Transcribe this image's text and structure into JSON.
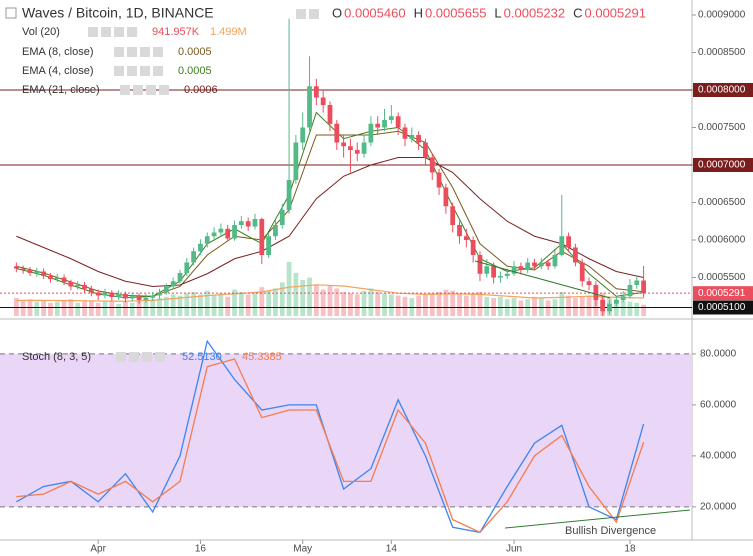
{
  "chart_data": [
    {
      "type": "candlestick",
      "title": "Waves / Bitcoin, 1D, BINANCE",
      "ohlc_legend": [
        {
          "key": "O",
          "value": 0.000546,
          "label": "0.0005460"
        },
        {
          "key": "H",
          "value": 0.0005655,
          "label": "0.0005655"
        },
        {
          "key": "L",
          "value": 0.0005232,
          "label": "0.0005232"
        },
        {
          "key": "C",
          "value": 0.0005291,
          "label": "0.0005291"
        }
      ],
      "up_color": "#53b987",
      "down_color": "#eb4d5c",
      "xlim": [
        -2.4,
        99.1
      ],
      "ylim": [
        0.000496,
        0.00092
      ],
      "yticks": [
        {
          "value": 0.0009,
          "label": "0.0009000"
        },
        {
          "value": 0.00085,
          "label": "0.0008500"
        },
        {
          "value": 0.0008,
          "label": "0.0008000"
        },
        {
          "value": 0.00075,
          "label": "0.0007500"
        },
        {
          "value": 0.0007,
          "label": "0.0007000"
        },
        {
          "value": 0.00065,
          "label": "0.0006500"
        },
        {
          "value": 0.0006,
          "label": "0.0006000"
        },
        {
          "value": 0.00055,
          "label": "0.0005500"
        }
      ],
      "grid": false,
      "candles": [
        [
          0,
          0.000565,
          0.00057,
          0.000557,
          0.000562
        ],
        [
          1,
          0.000562,
          0.000566,
          0.000555,
          0.00056
        ],
        [
          2,
          0.00056,
          0.000564,
          0.000552,
          0.000556
        ],
        [
          3,
          0.000556,
          0.000563,
          0.000551,
          0.000558
        ],
        [
          4,
          0.000558,
          0.000562,
          0.000548,
          0.000552
        ],
        [
          5,
          0.000552,
          0.000556,
          0.000543,
          0.000548
        ],
        [
          6,
          0.000548,
          0.000555,
          0.000544,
          0.00055
        ],
        [
          7,
          0.00055,
          0.000554,
          0.00054,
          0.000544
        ],
        [
          8,
          0.000544,
          0.000547,
          0.000533,
          0.000538
        ],
        [
          9,
          0.000538,
          0.000545,
          0.000534,
          0.00054
        ],
        [
          10,
          0.00054,
          0.000544,
          0.00053,
          0.000535
        ],
        [
          11,
          0.000535,
          0.000539,
          0.000525,
          0.00053
        ],
        [
          12,
          0.00053,
          0.000534,
          0.00052,
          0.000526
        ],
        [
          13,
          0.000526,
          0.000535,
          0.000522,
          0.00053
        ],
        [
          14,
          0.00053,
          0.000533,
          0.000519,
          0.000524
        ],
        [
          15,
          0.000524,
          0.000533,
          0.00052,
          0.000528
        ],
        [
          16,
          0.000528,
          0.000531,
          0.000517,
          0.000522
        ],
        [
          17,
          0.000522,
          0.00053,
          0.000518,
          0.000525
        ],
        [
          18,
          0.000525,
          0.000529,
          0.000515,
          0.00052
        ],
        [
          19,
          0.00052,
          0.000528,
          0.000516,
          0.000523
        ],
        [
          20,
          0.000523,
          0.000531,
          0.000519,
          0.000526
        ],
        [
          21,
          0.000526,
          0.000535,
          0.000522,
          0.00053
        ],
        [
          22,
          0.00053,
          0.000542,
          0.000527,
          0.000538
        ],
        [
          23,
          0.000538,
          0.00055,
          0.000535,
          0.000545
        ],
        [
          24,
          0.000545,
          0.00056,
          0.000542,
          0.000556
        ],
        [
          25,
          0.000556,
          0.000576,
          0.000552,
          0.00057
        ],
        [
          26,
          0.00057,
          0.00059,
          0.000566,
          0.000585
        ],
        [
          27,
          0.000585,
          0.000601,
          0.00058,
          0.000595
        ],
        [
          28,
          0.000595,
          0.00061,
          0.00059,
          0.000605
        ],
        [
          29,
          0.000605,
          0.000617,
          0.0006,
          0.00061
        ],
        [
          30,
          0.00061,
          0.000622,
          0.000605,
          0.000615
        ],
        [
          31,
          0.000615,
          0.00062,
          0.000598,
          0.000602
        ],
        [
          32,
          0.000602,
          0.000626,
          0.000599,
          0.00062
        ],
        [
          33,
          0.00062,
          0.000632,
          0.000615,
          0.000625
        ],
        [
          34,
          0.000625,
          0.00063,
          0.000612,
          0.000618
        ],
        [
          35,
          0.000618,
          0.000635,
          0.000614,
          0.000628
        ],
        [
          36,
          0.000628,
          0.00063,
          0.000568,
          0.00058
        ],
        [
          37,
          0.00058,
          0.00061,
          0.000576,
          0.000605
        ],
        [
          38,
          0.000605,
          0.000626,
          0.0006,
          0.00062
        ],
        [
          39,
          0.00062,
          0.000648,
          0.000615,
          0.00064
        ],
        [
          40,
          0.00064,
          0.000895,
          0.000635,
          0.00068
        ],
        [
          41,
          0.00068,
          0.00074,
          0.000675,
          0.00073
        ],
        [
          42,
          0.00073,
          0.00077,
          0.00072,
          0.00075
        ],
        [
          43,
          0.00075,
          0.000845,
          0.000745,
          0.000805
        ],
        [
          44,
          0.000805,
          0.000815,
          0.00078,
          0.00079
        ],
        [
          45,
          0.00079,
          0.0008,
          0.00077,
          0.00078
        ],
        [
          46,
          0.00078,
          0.000785,
          0.000745,
          0.000755
        ],
        [
          47,
          0.000755,
          0.00076,
          0.00072,
          0.00073
        ],
        [
          48,
          0.00073,
          0.00074,
          0.00071,
          0.000725
        ],
        [
          49,
          0.000725,
          0.000735,
          0.00069,
          0.00072
        ],
        [
          50,
          0.00072,
          0.00073,
          0.000705,
          0.000715
        ],
        [
          51,
          0.000715,
          0.00074,
          0.00071,
          0.00073
        ],
        [
          52,
          0.00073,
          0.000765,
          0.000725,
          0.000755
        ],
        [
          53,
          0.000755,
          0.000765,
          0.00074,
          0.00075
        ],
        [
          54,
          0.00075,
          0.000775,
          0.000745,
          0.00076
        ],
        [
          55,
          0.00076,
          0.00078,
          0.000755,
          0.000765
        ],
        [
          56,
          0.000765,
          0.00077,
          0.00074,
          0.00075
        ],
        [
          57,
          0.00075,
          0.000755,
          0.000725,
          0.000735
        ],
        [
          58,
          0.000735,
          0.00075,
          0.00073,
          0.00074
        ],
        [
          59,
          0.00074,
          0.000745,
          0.00072,
          0.00073
        ],
        [
          60,
          0.00073,
          0.000735,
          0.0007,
          0.00071
        ],
        [
          61,
          0.00071,
          0.000715,
          0.00068,
          0.00069
        ],
        [
          62,
          0.00069,
          0.000695,
          0.00066,
          0.00067
        ],
        [
          63,
          0.00067,
          0.000675,
          0.000635,
          0.000645
        ],
        [
          64,
          0.000645,
          0.00065,
          0.00061,
          0.00062
        ],
        [
          65,
          0.00062,
          0.000625,
          0.000595,
          0.000605
        ],
        [
          66,
          0.000605,
          0.000615,
          0.00059,
          0.0006
        ],
        [
          67,
          0.0006,
          0.000605,
          0.00057,
          0.00058
        ],
        [
          68,
          0.00058,
          0.000585,
          0.000545,
          0.000555
        ],
        [
          69,
          0.000555,
          0.000575,
          0.00055,
          0.000565
        ],
        [
          70,
          0.000565,
          0.00057,
          0.000542,
          0.00055
        ],
        [
          71,
          0.00055,
          0.000558,
          0.000543,
          0.000552
        ],
        [
          72,
          0.000552,
          0.000562,
          0.000548,
          0.000555
        ],
        [
          73,
          0.000555,
          0.000572,
          0.000552,
          0.000565
        ],
        [
          74,
          0.000565,
          0.00057,
          0.000554,
          0.00056
        ],
        [
          75,
          0.00056,
          0.000576,
          0.000556,
          0.00057
        ],
        [
          76,
          0.00057,
          0.000575,
          0.00056,
          0.000565
        ],
        [
          77,
          0.000565,
          0.000576,
          0.000561,
          0.00057
        ],
        [
          78,
          0.00057,
          0.000574,
          0.00056,
          0.000565
        ],
        [
          79,
          0.000565,
          0.000586,
          0.000562,
          0.00058
        ],
        [
          80,
          0.00058,
          0.00066,
          0.000578,
          0.000605
        ],
        [
          81,
          0.000605,
          0.00061,
          0.000585,
          0.00059
        ],
        [
          82,
          0.00059,
          0.000595,
          0.000565,
          0.00057
        ],
        [
          83,
          0.00057,
          0.000575,
          0.000538,
          0.000545
        ],
        [
          84,
          0.000545,
          0.00055,
          0.000533,
          0.00054
        ],
        [
          85,
          0.00054,
          0.000545,
          0.000512,
          0.00052
        ],
        [
          86,
          0.00052,
          0.000525,
          0.000499,
          0.000505
        ],
        [
          87,
          0.000505,
          0.00052,
          0.000501,
          0.000515
        ],
        [
          88,
          0.000515,
          0.000526,
          0.000511,
          0.00052
        ],
        [
          89,
          0.00052,
          0.000532,
          0.000517,
          0.000525
        ],
        [
          90,
          0.000525,
          0.000548,
          0.000522,
          0.00054
        ],
        [
          91,
          0.00054,
          0.000552,
          0.000535,
          0.000546
        ],
        [
          92,
          0.000546,
          0.0005655,
          0.0005232,
          0.0005291
        ]
      ],
      "volume_name": "Vol (20)",
      "volume_last": {
        "value": 941957,
        "label": "941.957K"
      },
      "volume_ma_last": {
        "value": 1499000,
        "label": "1.499M"
      },
      "volume_up_color": "#b9e3cb",
      "volume_down_color": "#f6c0c4",
      "volume_ma_color": "#f3a35c",
      "volume": [
        1500000,
        1300000,
        1400000,
        1200000,
        1300000,
        1100000,
        1200000,
        1300000,
        1400000,
        1100000,
        1200000,
        1300000,
        1100000,
        1200000,
        1300000,
        1000000,
        1200000,
        1100000,
        1300000,
        1200000,
        1400000,
        1500000,
        1600000,
        1800000,
        1700000,
        1900000,
        2000000,
        1800000,
        2100000,
        1700000,
        1900000,
        1600000,
        2200000,
        2000000,
        1800000,
        1900000,
        2400000,
        2100000,
        2300000,
        2800000,
        4500000,
        3600000,
        3000000,
        3200000,
        2600000,
        2200000,
        2500000,
        2300000,
        2000000,
        1900000,
        1800000,
        2100000,
        2300000,
        2000000,
        1900000,
        1800000,
        1700000,
        1600000,
        1500000,
        1700000,
        1800000,
        1900000,
        2000000,
        2200000,
        2100000,
        1800000,
        1700000,
        1900000,
        2000000,
        1600000,
        1500000,
        1600000,
        1400000,
        1500000,
        1300000,
        1400000,
        1600000,
        1500000,
        1300000,
        1400000,
        2000000,
        1700000,
        1500000,
        1600000,
        1700000,
        2200000,
        1900000,
        1500000,
        1400000,
        1300000,
        1200000,
        1100000,
        941957
      ],
      "line_x": [
        0,
        4,
        8,
        12,
        16,
        20,
        24,
        28,
        32,
        36,
        40,
        44,
        48,
        52,
        56,
        60,
        64,
        68,
        72,
        76,
        80,
        84,
        88,
        92
      ],
      "volume_ma": [
        1300000,
        1300000,
        1280000,
        1250000,
        1230000,
        1300000,
        1500000,
        1700000,
        1850000,
        2000000,
        2400000,
        2600000,
        2500000,
        2200000,
        1900000,
        1800000,
        1850000,
        1800000,
        1650000,
        1500000,
        1550000,
        1650000,
        1550000,
        1499000
      ],
      "lines": [
        {
          "name": "EMA (8, close)",
          "last": 0.0005,
          "color": "#7a5a1e",
          "values": [
            0.000565,
            0.000556,
            0.000544,
            0.000532,
            0.000526,
            0.000525,
            0.000538,
            0.00058,
            0.000605,
            0.0006,
            0.00064,
            0.00074,
            0.00074,
            0.00074,
            0.000745,
            0.00073,
            0.00067,
            0.000595,
            0.000565,
            0.00056,
            0.000585,
            0.000565,
            0.000535,
            0.000531
          ]
        },
        {
          "name": "EMA (4, close)",
          "last": 0.0005,
          "color": "#3f7d1f",
          "values": [
            0.000562,
            0.000553,
            0.00054,
            0.000528,
            0.000523,
            0.000525,
            0.000545,
            0.000595,
            0.000615,
            0.000595,
            0.00066,
            0.00077,
            0.000735,
            0.000745,
            0.00075,
            0.00072,
            0.000645,
            0.000575,
            0.000558,
            0.000563,
            0.000595,
            0.000555,
            0.000525,
            0.00053
          ]
        },
        {
          "name": "EMA (21, close)",
          "last": 0.0006,
          "color": "#7b2121",
          "values": [
            0.000605,
            0.00059,
            0.000575,
            0.000558,
            0.000545,
            0.000538,
            0.00054,
            0.000555,
            0.000575,
            0.000585,
            0.000605,
            0.000655,
            0.000685,
            0.0007,
            0.00071,
            0.00071,
            0.00069,
            0.000655,
            0.000625,
            0.000605,
            0.000595,
            0.000575,
            0.000558,
            0.00055
          ]
        }
      ],
      "hlines": [
        {
          "value": 0.0008,
          "label": "0.0008000",
          "color": "#7b1d1d",
          "style": "solid"
        },
        {
          "value": 0.0007,
          "label": "0.0007000",
          "color": "#7b1d1d",
          "style": "solid"
        },
        {
          "value": 0.0005291,
          "label": "0.0005291",
          "color": "#eb4d5c",
          "style": "dashed"
        },
        {
          "value": 0.00051,
          "label": "0.0005100",
          "color": "#111111",
          "style": "solid"
        }
      ]
    },
    {
      "type": "line",
      "title": "Stoch (8, 3, 5)",
      "xlim": [
        -2.4,
        99.1
      ],
      "ylim": [
        7,
        93.3
      ],
      "xticks": [
        {
          "value": 12,
          "label": "Apr"
        },
        {
          "value": 27,
          "label": "16"
        },
        {
          "value": 42,
          "label": "May"
        },
        {
          "value": 55,
          "label": "14"
        },
        {
          "value": 73,
          "label": "Jun"
        },
        {
          "value": 90,
          "label": "18"
        }
      ],
      "yticks": [
        {
          "value": 80,
          "label": "80.0000"
        },
        {
          "value": 60,
          "label": "60.0000"
        },
        {
          "value": 40,
          "label": "40.0000"
        },
        {
          "value": 20,
          "label": "20.0000"
        }
      ],
      "bands": [
        20,
        80
      ],
      "band_color": "#ead6f7",
      "x": [
        0,
        4,
        8,
        12,
        16,
        20,
        24,
        28,
        32,
        36,
        40,
        44,
        48,
        52,
        56,
        60,
        64,
        68,
        72,
        76,
        80,
        84,
        88,
        92
      ],
      "series": [
        {
          "name": "%K",
          "last": {
            "value": 52.513,
            "label": "52.5130"
          },
          "color": "#3d85f0",
          "values": [
            22,
            28,
            30,
            22,
            33,
            18,
            40,
            85,
            70,
            58,
            60,
            60,
            27,
            35,
            62,
            40,
            12,
            10,
            28,
            45,
            52,
            20,
            15,
            52.513
          ]
        },
        {
          "name": "%D",
          "last": {
            "value": 45.3385,
            "label": "45.3385"
          },
          "color": "#f57c4e",
          "values": [
            24,
            25,
            30,
            25,
            30,
            22,
            30,
            75,
            78,
            55,
            58,
            58,
            30,
            30,
            58,
            45,
            15,
            10,
            22,
            40,
            48,
            28,
            14,
            45.3385
          ]
        }
      ],
      "annotation": "Bullish Divergence"
    }
  ]
}
